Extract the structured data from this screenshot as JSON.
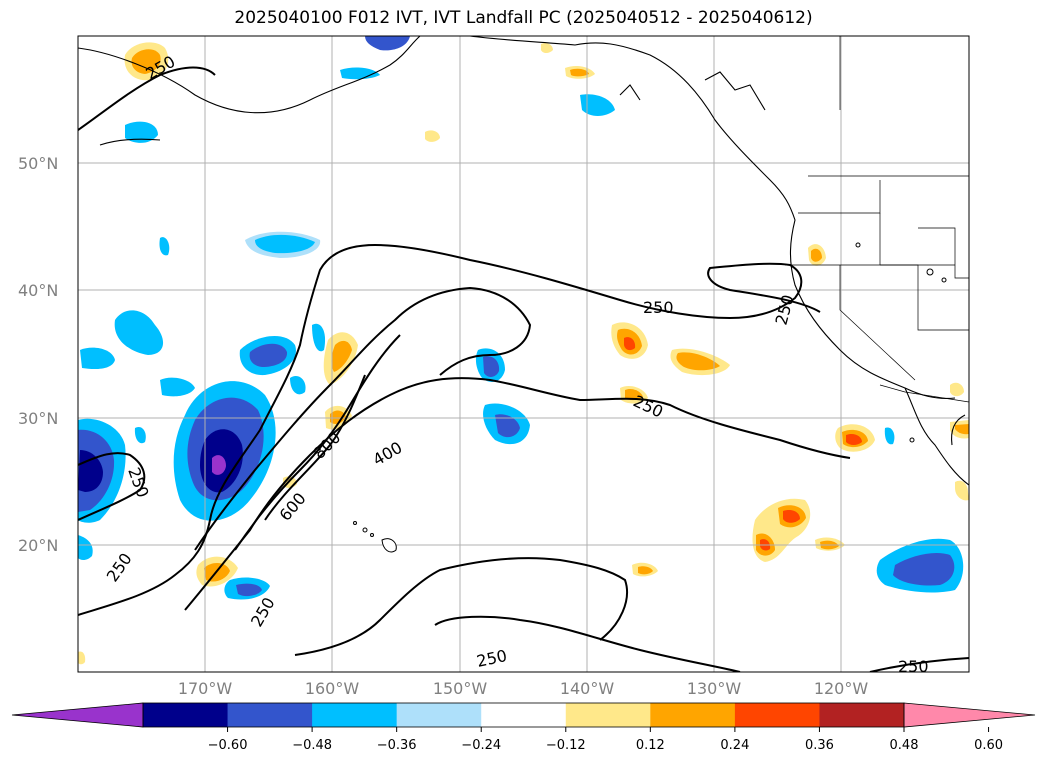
{
  "title": "2025040100 F012 IVT, IVT Landfall PC (2025040512 - 2025040612)",
  "latitude_labels": [
    "50°N",
    "40°N",
    "30°N",
    "20°N"
  ],
  "longitude_labels": [
    "170°W",
    "160°W",
    "150°W",
    "140°W",
    "130°W",
    "120°W"
  ],
  "colorbar": {
    "tick_labels": [
      "−0.60",
      "−0.48",
      "−0.36",
      "−0.24",
      "−0.12",
      "0.12",
      "0.24",
      "0.36",
      "0.48",
      "0.60"
    ],
    "colors": [
      "#9933cc",
      "#00008b",
      "#3355cc",
      "#00bfff",
      "#aee0fa",
      "#ffffff",
      "#ffe88a",
      "#ffa500",
      "#ff4500",
      "#b22222",
      "#ff88aa"
    ]
  },
  "contour_labels": [
    "250",
    "250",
    "250",
    "250",
    "250",
    "250",
    "250",
    "250",
    "250",
    "400",
    "600",
    "800"
  ],
  "colors": {
    "land_outline": "#000000",
    "gridline": "#b0b0b0",
    "axis_label": "#808080"
  }
}
